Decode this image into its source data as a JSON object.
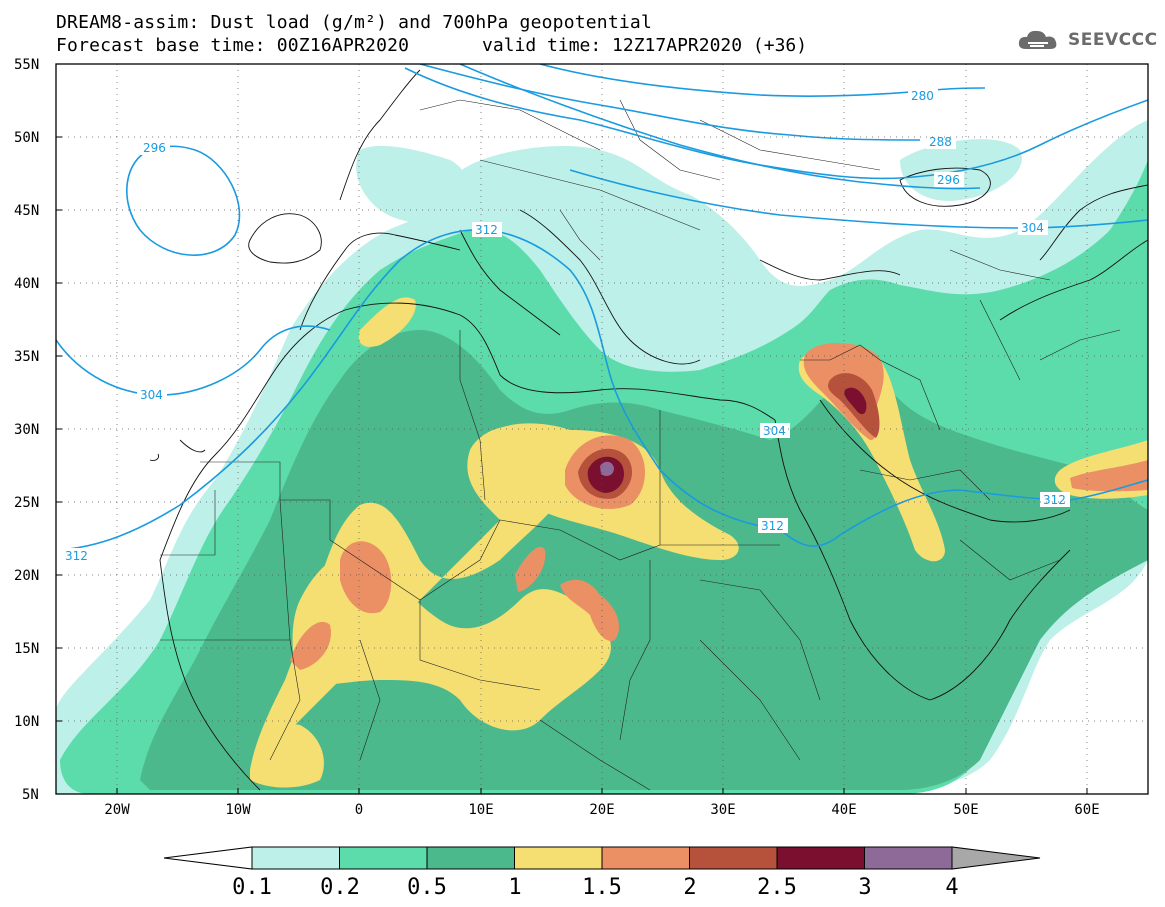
{
  "title": {
    "line1": "DREAM8-assim: Dust load (g/m²) and 700hPa geopotential",
    "line2": "Forecast base time: 00Z16APR2020",
    "valid": "valid time: 12Z17APR2020 (+36)"
  },
  "logo": {
    "text": "SEEVCCC",
    "icon": "cloud-icon"
  },
  "axes": {
    "lat_labels": [
      "55N",
      "50N",
      "45N",
      "40N",
      "35N",
      "30N",
      "25N",
      "20N",
      "15N",
      "10N",
      "5N"
    ],
    "lon_labels": [
      "20W",
      "10W",
      "0",
      "10E",
      "20E",
      "30E",
      "40E",
      "50E",
      "60E"
    ],
    "lon_range": [
      -25,
      65
    ],
    "lat_range": [
      5,
      55
    ],
    "grid": "dotted"
  },
  "colorbar": {
    "labels": [
      "0.1",
      "0.2",
      "0.5",
      "1",
      "1.5",
      "2",
      "2.5",
      "3",
      "4"
    ],
    "colors": [
      "#bdf0e8",
      "#5cdcaa",
      "#4cb98d",
      "#f5df73",
      "#eb8f64",
      "#b6523c",
      "#7a0f30",
      "#8e6a98",
      "#a8a8a8"
    ],
    "under_color": "#ffffff",
    "over_color": "#a8a8a8"
  },
  "contour_labels": [
    "296",
    "304",
    "312",
    "280",
    "288",
    "296",
    "304",
    "312",
    "304",
    "312",
    "312"
  ]
}
